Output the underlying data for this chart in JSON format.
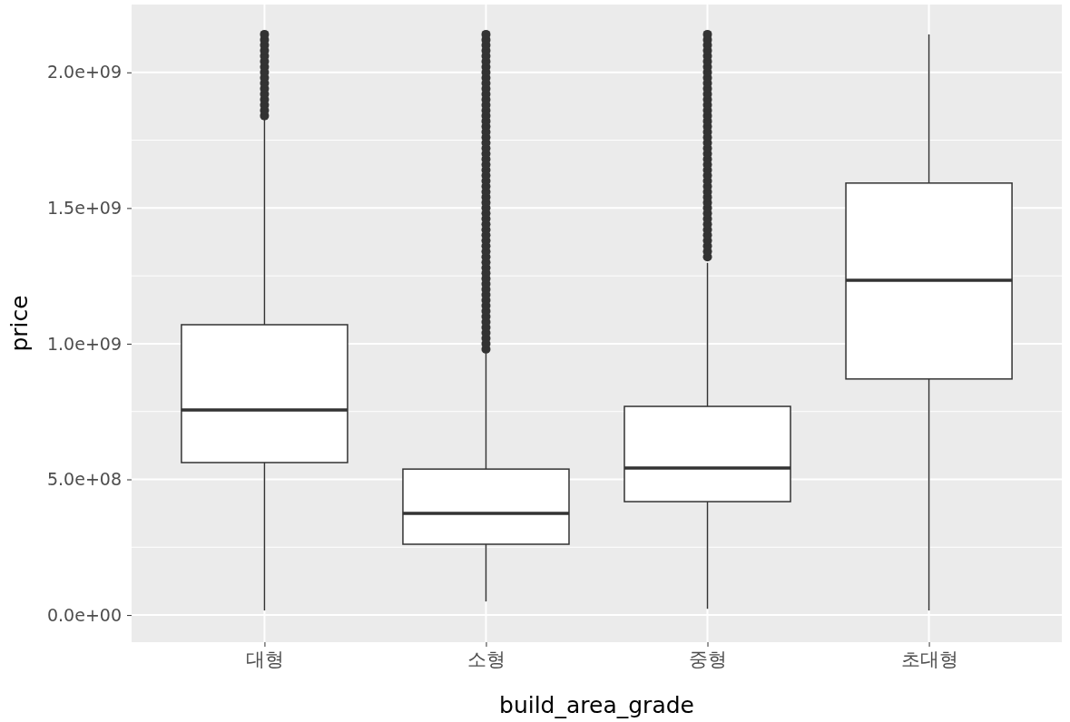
{
  "chart_data": {
    "type": "box",
    "xlabel": "build_area_grade",
    "ylabel": "price",
    "categories": [
      "대형",
      "소형",
      "중형",
      "초대형"
    ],
    "ylim": [
      -100000000.0,
      2250000000.0
    ],
    "yticks": [
      {
        "value": 0,
        "label": "0.0e+00"
      },
      {
        "value": 500000000.0,
        "label": "5.0e+08"
      },
      {
        "value": 1000000000.0,
        "label": "1.0e+09"
      },
      {
        "value": 1500000000.0,
        "label": "1.5e+09"
      },
      {
        "value": 2000000000.0,
        "label": "2.0e+09"
      }
    ],
    "grid": true,
    "boxes": [
      {
        "low": 17000000.0,
        "q1": 562000000.0,
        "median": 756000000.0,
        "q3": 1070000000.0,
        "high": 1829000000.0,
        "outliers": [
          1840000000.0,
          1860000000.0,
          1880000000.0,
          1900000000.0,
          1920000000.0,
          1940000000.0,
          1960000000.0,
          1980000000.0,
          2000000000.0,
          2020000000.0,
          2040000000.0,
          2060000000.0,
          2080000000.0,
          2100000000.0,
          2120000000.0,
          2140000000.0
        ]
      },
      {
        "low": 50000000.0,
        "q1": 261000000.0,
        "median": 375000000.0,
        "q3": 538000000.0,
        "high": 963000000.0,
        "outliers": [
          980000000.0,
          1000000000.0,
          1020000000.0,
          1040000000.0,
          1060000000.0,
          1080000000.0,
          1100000000.0,
          1120000000.0,
          1140000000.0,
          1160000000.0,
          1180000000.0,
          1200000000.0,
          1220000000.0,
          1240000000.0,
          1260000000.0,
          1280000000.0,
          1300000000.0,
          1320000000.0,
          1340000000.0,
          1360000000.0,
          1380000000.0,
          1400000000.0,
          1420000000.0,
          1440000000.0,
          1460000000.0,
          1480000000.0,
          1500000000.0,
          1520000000.0,
          1540000000.0,
          1560000000.0,
          1580000000.0,
          1600000000.0,
          1620000000.0,
          1640000000.0,
          1660000000.0,
          1680000000.0,
          1700000000.0,
          1720000000.0,
          1740000000.0,
          1760000000.0,
          1780000000.0,
          1800000000.0,
          1820000000.0,
          1840000000.0,
          1860000000.0,
          1880000000.0,
          1900000000.0,
          1920000000.0,
          1940000000.0,
          1960000000.0,
          1980000000.0,
          2000000000.0,
          2020000000.0,
          2040000000.0,
          2060000000.0,
          2080000000.0,
          2100000000.0,
          2120000000.0,
          2140000000.0
        ]
      },
      {
        "low": 23000000.0,
        "q1": 418000000.0,
        "median": 542000000.0,
        "q3": 769000000.0,
        "high": 1298000000.0,
        "outliers": [
          1320000000.0,
          1340000000.0,
          1360000000.0,
          1380000000.0,
          1400000000.0,
          1420000000.0,
          1440000000.0,
          1460000000.0,
          1480000000.0,
          1500000000.0,
          1520000000.0,
          1540000000.0,
          1560000000.0,
          1580000000.0,
          1600000000.0,
          1620000000.0,
          1640000000.0,
          1660000000.0,
          1680000000.0,
          1700000000.0,
          1720000000.0,
          1740000000.0,
          1760000000.0,
          1780000000.0,
          1800000000.0,
          1820000000.0,
          1840000000.0,
          1860000000.0,
          1880000000.0,
          1900000000.0,
          1920000000.0,
          1940000000.0,
          1960000000.0,
          1980000000.0,
          2000000000.0,
          2020000000.0,
          2040000000.0,
          2060000000.0,
          2080000000.0,
          2100000000.0,
          2120000000.0,
          2140000000.0
        ]
      },
      {
        "low": 17000000.0,
        "q1": 870000000.0,
        "median": 1234000000.0,
        "q3": 1592000000.0,
        "high": 2140000000.0
      }
    ]
  }
}
